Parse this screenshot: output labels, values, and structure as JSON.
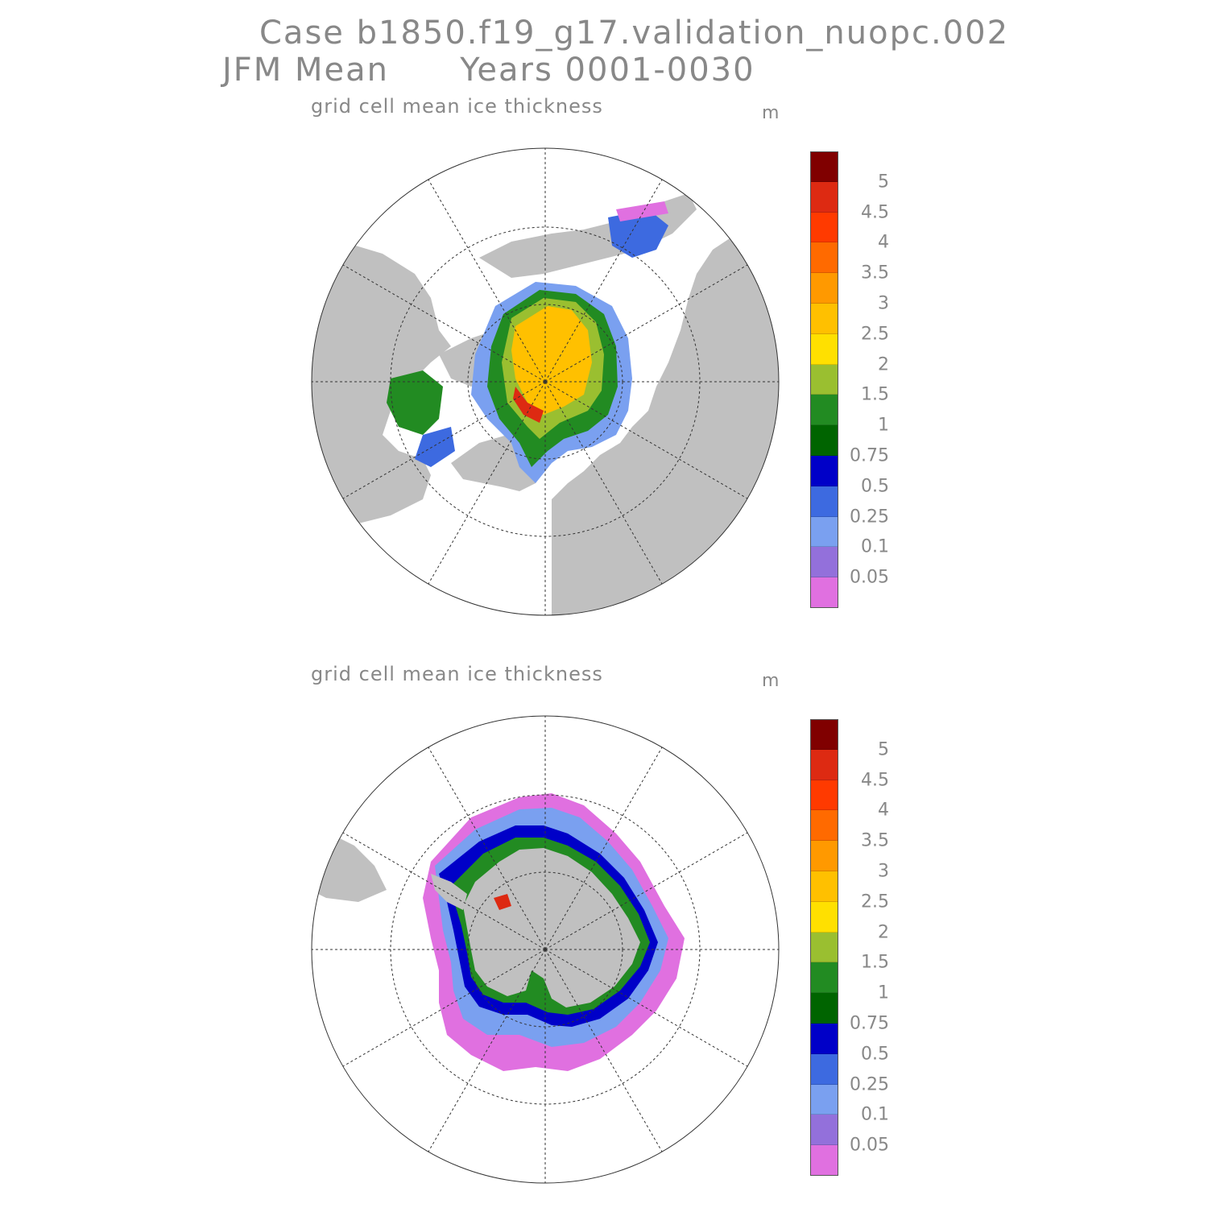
{
  "title": {
    "line1": "Case b1850.f19_g17.validation_nuopc.002",
    "line2": "JFM Mean      Years 0001-0030"
  },
  "panels": [
    {
      "title": "grid cell mean ice thickness",
      "units": "m",
      "hemisphere": "north"
    },
    {
      "title": "grid cell mean ice thickness",
      "units": "m",
      "hemisphere": "south"
    }
  ],
  "colorbar": {
    "labels": [
      "5",
      "4.5",
      "4",
      "3.5",
      "3",
      "2.5",
      "2",
      "1.5",
      "1",
      "0.75",
      "0.5",
      "0.25",
      "0.1",
      "0.05"
    ],
    "colors": [
      "#800000",
      "#dd2a12",
      "#ff3a00",
      "#ff6a00",
      "#ff9900",
      "#ffc000",
      "#ffe000",
      "#9abf30",
      "#228b22",
      "#006400",
      "#0000c8",
      "#3d6ae0",
      "#7aa0f0",
      "#9370db",
      "#e070e0"
    ]
  },
  "colors": {
    "land": "#c0c0c0",
    "ocean": "#ffffff",
    "text": "#888888"
  }
}
